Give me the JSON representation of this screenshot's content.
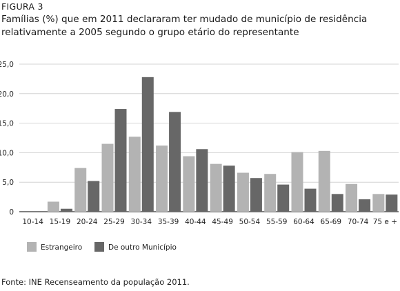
{
  "figure_label": "FIGURA 3",
  "title": "Famílias (%) que em 2011 declararam ter mudado de município de residência relativamente a 2005 segundo o grupo etário do representante",
  "source": "Fonte: INE Recenseamento da população 2011.",
  "colors": {
    "series_1": "#b3b3b3",
    "series_2": "#676767",
    "axis": "#333333"
  },
  "chart_data": {
    "type": "bar",
    "categories": [
      "10-14",
      "15-19",
      "20-24",
      "25-29",
      "30-34",
      "35-39",
      "40-44",
      "45-49",
      "50-54",
      "55-59",
      "60-64",
      "65-69",
      "70-74",
      "75 e +"
    ],
    "series": [
      {
        "name": "Estrangeiro",
        "values": [
          0.0,
          1.7,
          7.4,
          11.5,
          12.7,
          11.2,
          9.4,
          8.1,
          6.6,
          6.4,
          10.1,
          10.3,
          4.7,
          3.0
        ]
      },
      {
        "name": "De outro Município",
        "values": [
          0.0,
          0.5,
          5.2,
          17.4,
          22.8,
          16.9,
          10.6,
          7.8,
          5.7,
          4.6,
          3.9,
          3.0,
          2.1,
          2.9
        ]
      }
    ],
    "ylim": [
      0,
      25
    ],
    "yticks": [
      "0",
      "5,0",
      "10,0",
      "15,0",
      "20,0",
      "25,0"
    ],
    "grid": true,
    "legend": "bottom-left",
    "xlabel": "",
    "ylabel": ""
  }
}
